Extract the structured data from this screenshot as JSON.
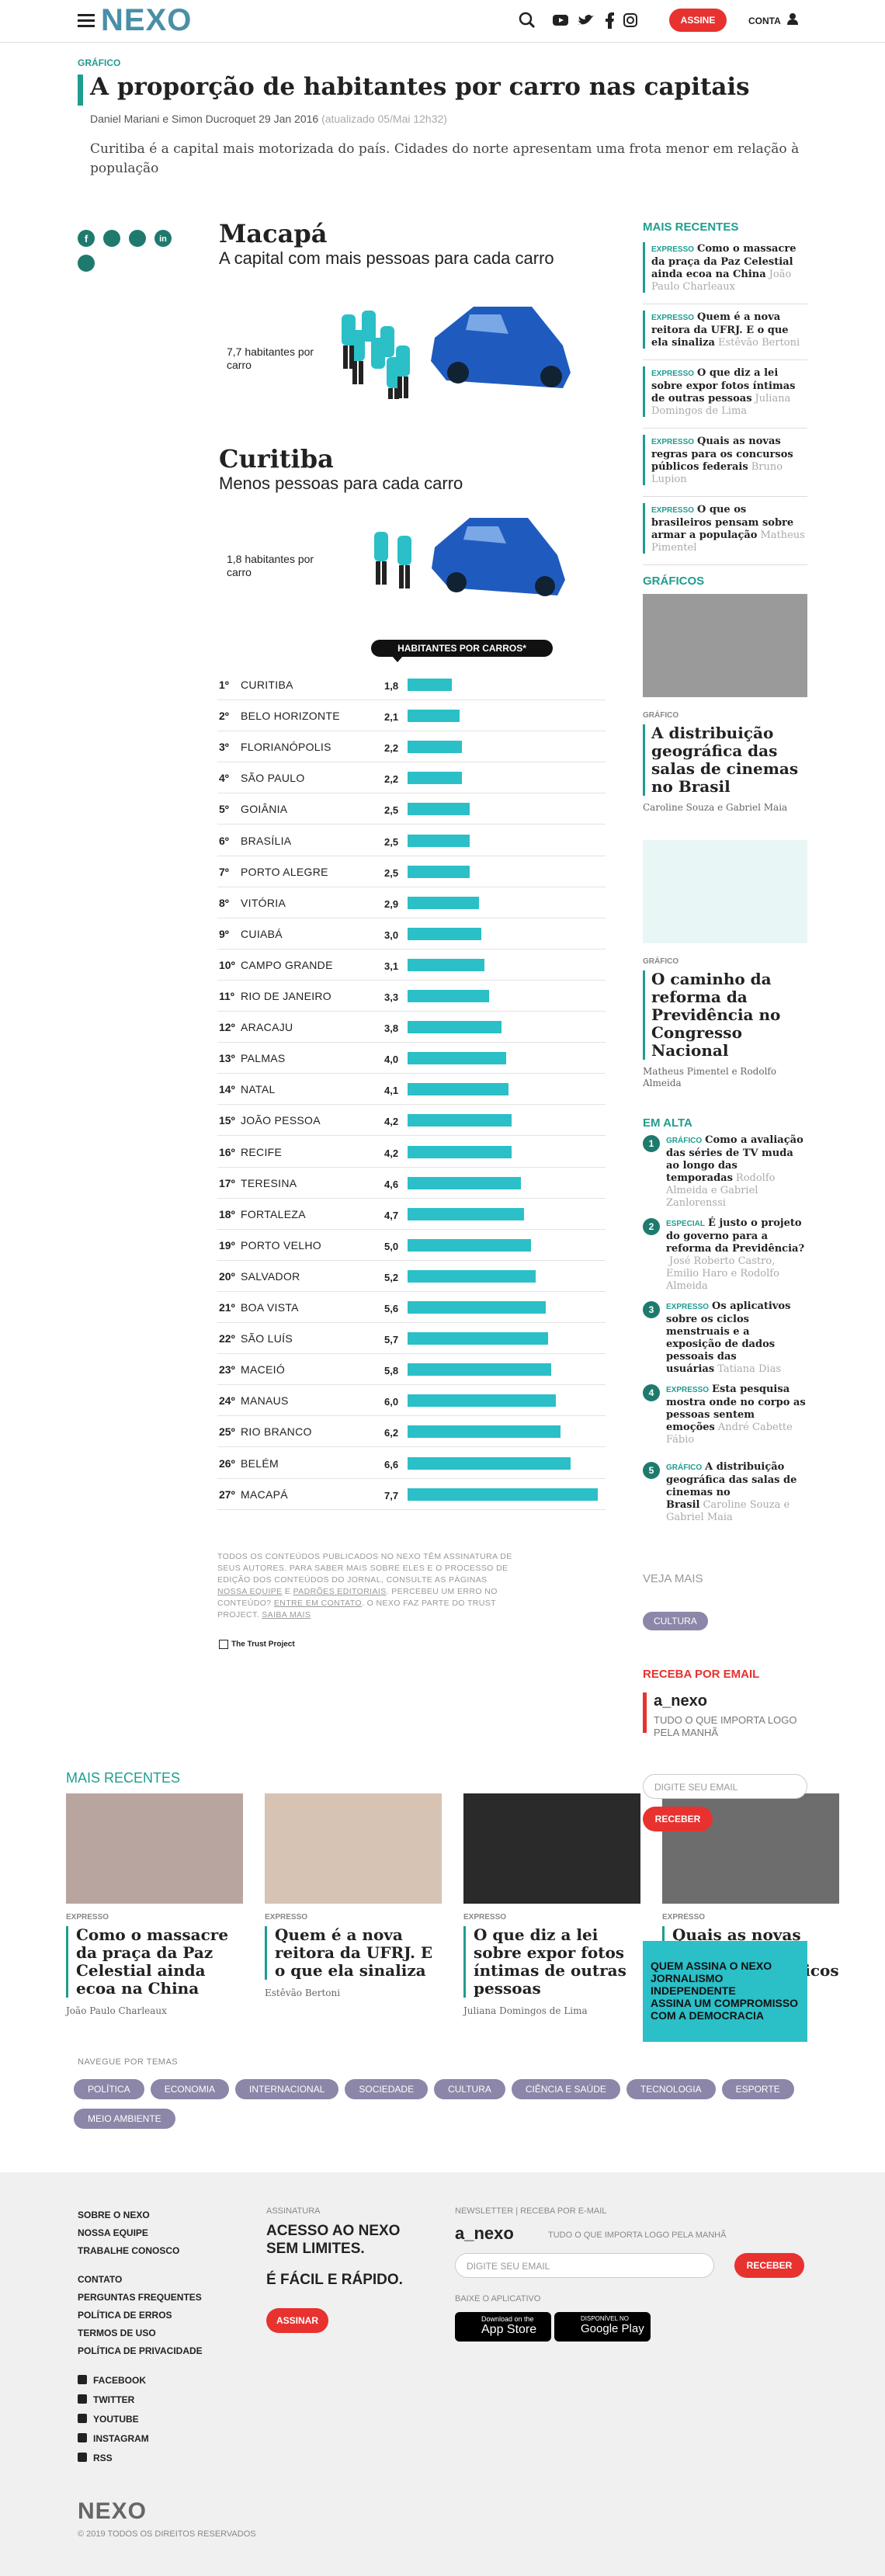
{
  "header": {
    "logo": "NEXO",
    "subscribe": "ASSINE",
    "account": "CONTA"
  },
  "article": {
    "section": "GRÁFICO",
    "title": "A proporção de habitantes por carro nas capitais",
    "byline": "Daniel Mariani e Simon Ducroquet 29 Jan 2016",
    "updated": "(atualizado 05/Mai 12h32)",
    "summary": "Curitiba é a capital mais motorizada do país. Cidades do norte apresentam uma frota menor em relação à população"
  },
  "graphic": {
    "macapa": {
      "title": "Macapá",
      "subtitle": "A capital com mais pessoas para cada carro",
      "label": "7,7 habitantes por carro"
    },
    "curitiba": {
      "title": "Curitiba",
      "subtitle": "Menos pessoas para cada carro",
      "label": "1,8 habitantes por carro"
    },
    "ranking": {
      "title": "HABITANTES POR CARROS*",
      "rows": [
        {
          "rank": "1º",
          "city": "CURITIBA",
          "value": 1.8,
          "label": "1,8"
        },
        {
          "rank": "2º",
          "city": "BELO HORIZONTE",
          "value": 2.1,
          "label": "2,1"
        },
        {
          "rank": "3º",
          "city": "FLORIANÓPOLIS",
          "value": 2.2,
          "label": "2,2"
        },
        {
          "rank": "4º",
          "city": "SÃO PAULO",
          "value": 2.2,
          "label": "2,2"
        },
        {
          "rank": "5º",
          "city": "GOIÂNIA",
          "value": 2.5,
          "label": "2,5"
        },
        {
          "rank": "6º",
          "city": "BRASÍLIA",
          "value": 2.5,
          "label": "2,5"
        },
        {
          "rank": "7º",
          "city": "PORTO ALEGRE",
          "value": 2.5,
          "label": "2,5"
        },
        {
          "rank": "8º",
          "city": "VITÓRIA",
          "value": 2.9,
          "label": "2,9"
        },
        {
          "rank": "9º",
          "city": "CUIABÁ",
          "value": 3.0,
          "label": "3,0"
        },
        {
          "rank": "10º",
          "city": "CAMPO GRANDE",
          "value": 3.1,
          "label": "3,1"
        },
        {
          "rank": "11º",
          "city": "RIO DE JANEIRO",
          "value": 3.3,
          "label": "3,3"
        },
        {
          "rank": "12º",
          "city": "ARACAJU",
          "value": 3.8,
          "label": "3,8"
        },
        {
          "rank": "13º",
          "city": "PALMAS",
          "value": 4.0,
          "label": "4,0"
        },
        {
          "rank": "14º",
          "city": "NATAL",
          "value": 4.1,
          "label": "4,1"
        },
        {
          "rank": "15º",
          "city": "JOÃO PESSOA",
          "value": 4.2,
          "label": "4,2"
        },
        {
          "rank": "16º",
          "city": "RECIFE",
          "value": 4.2,
          "label": "4,2"
        },
        {
          "rank": "17º",
          "city": "TERESINA",
          "value": 4.6,
          "label": "4,6"
        },
        {
          "rank": "18º",
          "city": "FORTALEZA",
          "value": 4.7,
          "label": "4,7"
        },
        {
          "rank": "19º",
          "city": "PORTO VELHO",
          "value": 5.0,
          "label": "5,0"
        },
        {
          "rank": "20º",
          "city": "SALVADOR",
          "value": 5.2,
          "label": "5,2"
        },
        {
          "rank": "21º",
          "city": "BOA VISTA",
          "value": 5.6,
          "label": "5,6"
        },
        {
          "rank": "22º",
          "city": "SÃO LUÍS",
          "value": 5.7,
          "label": "5,7"
        },
        {
          "rank": "23º",
          "city": "MACEIÓ",
          "value": 5.8,
          "label": "5,8"
        },
        {
          "rank": "24º",
          "city": "MANAUS",
          "value": 6.0,
          "label": "6,0"
        },
        {
          "rank": "25º",
          "city": "RIO BRANCO",
          "value": 6.2,
          "label": "6,2"
        },
        {
          "rank": "26º",
          "city": "BELÉM",
          "value": 6.6,
          "label": "6,6"
        },
        {
          "rank": "27º",
          "city": "MACAPÁ",
          "value": 7.7,
          "label": "7,7"
        }
      ]
    }
  },
  "notes": {
    "parts": [
      "TODOS OS CONTEÚDOS PUBLICADOS NO NEXO TÊM ASSINATURA DE SEUS AUTORES. PARA SABER MAIS SOBRE ELES E O PROCESSO DE EDIÇÃO DOS CONTEÚDOS DO JORNAL, CONSULTE AS PÁGINAS ",
      "NOSSA EQUIPE",
      " E ",
      "PADRÕES EDITORIAIS",
      ". PERCEBEU UM ERRO NO CONTEÚDO? ",
      "ENTRE EM CONTATO",
      ". O NEXO FAZ PARTE DO TRUST PROJECT. ",
      "SAIBA MAIS"
    ],
    "trust": "The Trust Project"
  },
  "sidebar": {
    "recent_title": "MAIS RECENTES",
    "recent": [
      {
        "tag": "EXPRESSO",
        "title": "Como o massacre da praça da Paz Celestial ainda ecoa na China",
        "author": "João Paulo Charleaux"
      },
      {
        "tag": "EXPRESSO",
        "title": "Quem é a nova reitora da UFRJ. E o que ela sinaliza",
        "author": "Estêvão Bertoni"
      },
      {
        "tag": "EXPRESSO",
        "title": "O que diz a lei sobre expor fotos íntimas de outras pessoas",
        "author": "Juliana Domingos de Lima"
      },
      {
        "tag": "EXPRESSO",
        "title": "Quais as novas regras para os concursos públicos federais",
        "author": "Bruno Lupion"
      },
      {
        "tag": "EXPRESSO",
        "title": "O que os brasileiros pensam sobre armar a população",
        "author": "Matheus Pimentel"
      }
    ],
    "graphics_title": "GRÁFICOS",
    "graphics": [
      {
        "tag": "GRÁFICO",
        "title": "A distribuição geográfica das salas de cinemas no Brasil",
        "author": "Caroline Souza e Gabriel Maia"
      },
      {
        "tag": "GRÁFICO",
        "title": "O caminho da reforma da Previdência no Congresso Nacional",
        "author": "Matheus Pimentel e Rodolfo Almeida"
      }
    ],
    "trending_title": "EM ALTA",
    "trending": [
      {
        "rank": "1",
        "tag": "GRÁFICO",
        "title": "Como a avaliação das séries de TV muda ao longo das temporadas",
        "author": "Rodolfo Almeida e Gabriel Zanlorenssi"
      },
      {
        "rank": "2",
        "tag": "ESPECIAL",
        "title": "É justo o projeto do governo para a reforma da Previdência?",
        "author": "José Roberto Castro, Emilio Haro e Rodolfo Almeida"
      },
      {
        "rank": "3",
        "tag": "EXPRESSO",
        "title": "Os aplicativos sobre os ciclos menstruais e a exposição de dados pessoais das usuárias",
        "author": "Tatiana Dias"
      },
      {
        "rank": "4",
        "tag": "EXPRESSO",
        "title": "Esta pesquisa mostra onde no corpo as pessoas sentem emoções",
        "author": "André Cabette Fábio"
      },
      {
        "rank": "5",
        "tag": "GRÁFICO",
        "title": "A distribuição geográfica das salas de cinemas no Brasil",
        "author": "Caroline Souza e Gabriel Maia"
      }
    ],
    "see_more": "VEJA MAIS",
    "see_more_tag": "CULTURA",
    "newsletter": {
      "title": "RECEBA POR EMAIL",
      "name": "a_nexo",
      "tagline": "TUDO O QUE IMPORTA LOGO PELA MANHÃ",
      "placeholder": "DIGITE SEU EMAIL",
      "button": "RECEBER"
    },
    "promo": [
      "QUEM ASSINA O NEXO",
      "JORNALISMO INDEPENDENTE",
      "ASSINA UM COMPROMISSO COM A DEMOCRACIA"
    ]
  },
  "recent": {
    "title": "MAIS RECENTES",
    "cards": [
      {
        "tag": "EXPRESSO",
        "title": "Como o massacre da praça da Paz Celestial ainda ecoa na China",
        "author": "João Paulo Charleaux"
      },
      {
        "tag": "EXPRESSO",
        "title": "Quem é a nova reitora da UFRJ. E o que ela sinaliza",
        "author": "Estêvão Bertoni"
      },
      {
        "tag": "EXPRESSO",
        "title": "O que diz a lei sobre expor fotos íntimas de outras pessoas",
        "author": "Juliana Domingos de Lima"
      },
      {
        "tag": "EXPRESSO",
        "title": "Quais as novas regras para os concursos públicos federais",
        "author": "Bruno Lupion"
      }
    ]
  },
  "topics": {
    "title": "NAVEGUE POR TEMAS",
    "items": [
      "POLÍTICA",
      "ECONOMIA",
      "INTERNACIONAL",
      "SOCIEDADE",
      "CULTURA",
      "CIÊNCIA E SAÚDE",
      "TECNOLOGIA",
      "ESPORTE",
      "MEIO AMBIENTE"
    ]
  },
  "footer": {
    "links_a": [
      "SOBRE O NEXO",
      "NOSSA EQUIPE",
      "TRABALHE CONOSCO"
    ],
    "links_b": [
      "CONTATO",
      "PERGUNTAS FREQUENTES",
      "POLÍTICA DE ERROS",
      "TERMOS DE USO",
      "POLÍTICA DE PRIVACIDADE"
    ],
    "social": [
      "FACEBOOK",
      "TWITTER",
      "YOUTUBE",
      "INSTAGRAM",
      "RSS"
    ],
    "subscription": {
      "label": "ASSINATURA",
      "headline": "ACESSO AO NEXO SEM LIMITES.",
      "sub": "É FÁCIL E RÁPIDO.",
      "button": "ASSINAR"
    },
    "newsletter": {
      "label": "NEWSLETTER | RECEBA POR E-MAIL",
      "name": "a_nexo",
      "tagline": "TUDO O QUE IMPORTA LOGO PELA MANHÃ",
      "placeholder": "DIGITE SEU EMAIL",
      "button": "RECEBER",
      "app": "BAIXE O APLICATIVO",
      "appstore": [
        "Download on the",
        "App Store"
      ],
      "googleplay": [
        "DISPONÍVEL NO",
        "Google Play"
      ]
    },
    "logo": "NEXO",
    "copyright": "© 2019 TODOS OS DIREITOS RESERVADOS"
  }
}
